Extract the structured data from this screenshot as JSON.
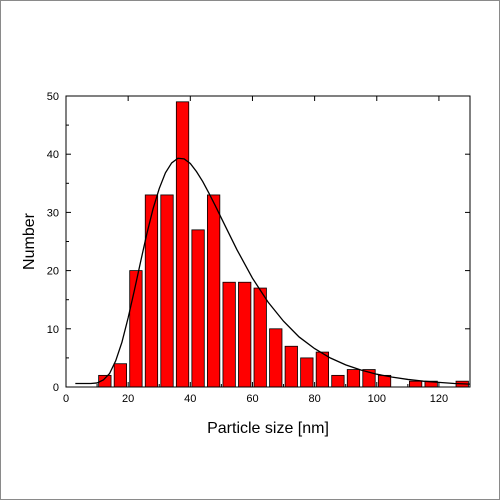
{
  "chart_data": {
    "type": "bar",
    "xlabel": "Particle size [nm]",
    "ylabel": "Number",
    "xlim": [
      0,
      130
    ],
    "ylim": [
      0,
      50
    ],
    "x_ticks": [
      0,
      20,
      40,
      60,
      80,
      100,
      120
    ],
    "y_ticks": [
      0,
      10,
      20,
      30,
      40,
      50
    ],
    "bin_width": 4,
    "bins": [
      {
        "center": 12.5,
        "value": 2
      },
      {
        "center": 17.5,
        "value": 4
      },
      {
        "center": 22.5,
        "value": 20
      },
      {
        "center": 27.5,
        "value": 33
      },
      {
        "center": 32.5,
        "value": 33
      },
      {
        "center": 37.5,
        "value": 49
      },
      {
        "center": 42.5,
        "value": 27
      },
      {
        "center": 47.5,
        "value": 33
      },
      {
        "center": 52.5,
        "value": 18
      },
      {
        "center": 57.5,
        "value": 18
      },
      {
        "center": 62.5,
        "value": 17
      },
      {
        "center": 67.5,
        "value": 10
      },
      {
        "center": 72.5,
        "value": 7
      },
      {
        "center": 77.5,
        "value": 5
      },
      {
        "center": 82.5,
        "value": 6
      },
      {
        "center": 87.5,
        "value": 2
      },
      {
        "center": 92.5,
        "value": 3
      },
      {
        "center": 97.5,
        "value": 3
      },
      {
        "center": 102.5,
        "value": 2
      },
      {
        "center": 112.5,
        "value": 1
      },
      {
        "center": 117.5,
        "value": 1
      },
      {
        "center": 127.5,
        "value": 1
      }
    ],
    "fit_curve": {
      "type": "lognormal",
      "x": [
        3,
        8,
        10,
        12,
        14,
        16,
        18,
        20,
        22,
        24,
        26,
        28,
        30,
        32,
        34,
        36,
        38,
        40,
        42,
        44,
        46,
        48,
        50,
        55,
        60,
        65,
        70,
        75,
        80,
        85,
        90,
        95,
        100,
        105,
        110,
        115,
        120,
        125,
        130
      ],
      "y": [
        0.6,
        0.6,
        0.7,
        1.2,
        2.3,
        4.5,
        7.7,
        11.9,
        16.6,
        21.5,
        26.3,
        30.6,
        34.1,
        36.8,
        38.5,
        39.3,
        39.2,
        38.4,
        37.0,
        35.3,
        33.3,
        31.2,
        29.0,
        23.6,
        18.7,
        14.6,
        11.3,
        8.6,
        6.6,
        5.0,
        3.8,
        2.9,
        2.2,
        1.7,
        1.3,
        1.0,
        0.8,
        0.6,
        0.5
      ]
    },
    "bar_color": "#ff0000",
    "bar_edge_color": "#000000",
    "curve_color": "#000000",
    "grid": false,
    "legend": "none"
  }
}
